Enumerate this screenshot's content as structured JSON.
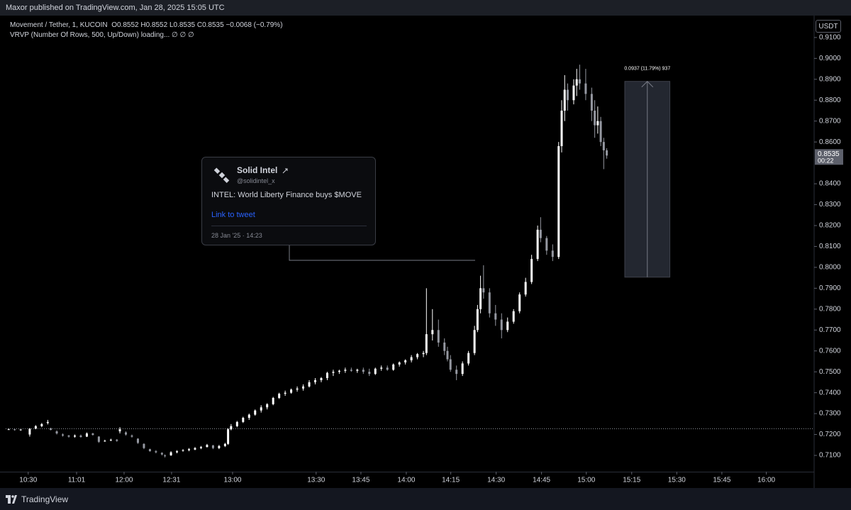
{
  "header": {
    "publisher": "Maxor published on TradingView.com, Jan 28, 2025 15:05 UTC",
    "symbol": "Movement / Tether, 1, KUCOIN",
    "ohlc": "O0.8552 H0.8552 L0.8535 C0.8535 −0.0068 (−0.79%)",
    "indicator": "VRVP (Number Of Rows, 500, Up/Down) loading... ∅ ∅ ∅",
    "currency": "USDT"
  },
  "tweet": {
    "name": "Solid Intel",
    "handle": "@solidintel_x",
    "text": "INTEL: World Liberty Finance buys $MOVE",
    "link": "Link to tweet",
    "date": "28 Jan '25 · 14:23"
  },
  "footer": {
    "brand": "TradingView"
  },
  "chart_data": {
    "type": "candlestick",
    "up_color": "#ffffff",
    "down_color": "#9598a1",
    "grid": false,
    "xlim": [
      0,
      269
    ],
    "ylim": [
      0.7022,
      0.9198
    ],
    "xticks": [
      {
        "value": 7.5,
        "label": "10:30"
      },
      {
        "value": 23.6,
        "label": "11:01"
      },
      {
        "value": 39.4,
        "label": "12:00"
      },
      {
        "value": 55.2,
        "label": "12:31"
      },
      {
        "value": 75.5,
        "label": "13:00"
      },
      {
        "value": 103.3,
        "label": "13:30"
      },
      {
        "value": 118.2,
        "label": "13:45"
      },
      {
        "value": 133.3,
        "label": "14:00"
      },
      {
        "value": 148.1,
        "label": "14:15"
      },
      {
        "value": 163.2,
        "label": "14:30"
      },
      {
        "value": 178.3,
        "label": "14:45"
      },
      {
        "value": 193.2,
        "label": "15:00"
      },
      {
        "value": 208.3,
        "label": "15:15"
      },
      {
        "value": 223.3,
        "label": "15:30"
      },
      {
        "value": 238.3,
        "label": "15:45"
      },
      {
        "value": 253.1,
        "label": "16:00"
      }
    ],
    "yticks": [
      {
        "value": 0.71,
        "label": "0.7100"
      },
      {
        "value": 0.72,
        "label": "0.7200"
      },
      {
        "value": 0.73,
        "label": "0.7300"
      },
      {
        "value": 0.74,
        "label": "0.7400"
      },
      {
        "value": 0.75,
        "label": "0.7500"
      },
      {
        "value": 0.76,
        "label": "0.7600"
      },
      {
        "value": 0.77,
        "label": "0.7700"
      },
      {
        "value": 0.78,
        "label": "0.7800"
      },
      {
        "value": 0.79,
        "label": "0.7900"
      },
      {
        "value": 0.8,
        "label": "0.8000"
      },
      {
        "value": 0.81,
        "label": "0.8100"
      },
      {
        "value": 0.82,
        "label": "0.8200"
      },
      {
        "value": 0.83,
        "label": "0.8300"
      },
      {
        "value": 0.84,
        "label": "0.8400"
      },
      {
        "value": 0.86,
        "label": "0.8600"
      },
      {
        "value": 0.87,
        "label": "0.8700"
      },
      {
        "value": 0.88,
        "label": "0.8800"
      },
      {
        "value": 0.89,
        "label": "0.8900"
      },
      {
        "value": 0.9,
        "label": "0.9000"
      },
      {
        "value": 0.91,
        "label": "0.9100"
      }
    ],
    "last_price": 0.8535,
    "countdown": "00:22",
    "reference_line": 0.7228,
    "measure": {
      "label": "0.0937 (11.79%) 937",
      "from": 0.7953,
      "to": 0.889,
      "x": [
        206,
        221
      ]
    },
    "candles": [
      {
        "x": 1,
        "open": 0.7225,
        "high": 0.7228,
        "low": 0.7222,
        "close": 0.7225
      },
      {
        "x": 3,
        "open": 0.7225,
        "high": 0.7226,
        "low": 0.7218,
        "close": 0.7222
      },
      {
        "x": 5,
        "open": 0.7222,
        "high": 0.7225,
        "low": 0.7218,
        "close": 0.7224
      },
      {
        "x": 8,
        "open": 0.72,
        "high": 0.723,
        "low": 0.719,
        "close": 0.7228
      },
      {
        "x": 10,
        "open": 0.7228,
        "high": 0.7245,
        "low": 0.7225,
        "close": 0.724
      },
      {
        "x": 12,
        "open": 0.724,
        "high": 0.7255,
        "low": 0.7235,
        "close": 0.725
      },
      {
        "x": 14,
        "open": 0.7255,
        "high": 0.727,
        "low": 0.7248,
        "close": 0.726
      },
      {
        "x": 15,
        "open": 0.723,
        "high": 0.7232,
        "low": 0.722,
        "close": 0.7222
      },
      {
        "x": 17,
        "open": 0.7215,
        "high": 0.722,
        "low": 0.72,
        "close": 0.7205
      },
      {
        "x": 19,
        "open": 0.72,
        "high": 0.7205,
        "low": 0.719,
        "close": 0.7195
      },
      {
        "x": 21,
        "open": 0.7195,
        "high": 0.7198,
        "low": 0.7185,
        "close": 0.719
      },
      {
        "x": 23,
        "open": 0.719,
        "high": 0.72,
        "low": 0.7185,
        "close": 0.7195
      },
      {
        "x": 25,
        "open": 0.7195,
        "high": 0.72,
        "low": 0.7185,
        "close": 0.7188
      },
      {
        "x": 27,
        "open": 0.719,
        "high": 0.721,
        "low": 0.7188,
        "close": 0.7205
      },
      {
        "x": 29,
        "open": 0.7205,
        "high": 0.7208,
        "low": 0.7195,
        "close": 0.7198
      },
      {
        "x": 31,
        "open": 0.719,
        "high": 0.7192,
        "low": 0.716,
        "close": 0.7165
      },
      {
        "x": 33,
        "open": 0.717,
        "high": 0.7175,
        "low": 0.7165,
        "close": 0.717
      },
      {
        "x": 35,
        "open": 0.7172,
        "high": 0.718,
        "low": 0.7168,
        "close": 0.7175
      },
      {
        "x": 37,
        "open": 0.7175,
        "high": 0.7178,
        "low": 0.7165,
        "close": 0.717
      },
      {
        "x": 38,
        "open": 0.7215,
        "high": 0.7235,
        "low": 0.7205,
        "close": 0.7225
      },
      {
        "x": 40,
        "open": 0.721,
        "high": 0.7215,
        "low": 0.7195,
        "close": 0.72
      },
      {
        "x": 42,
        "open": 0.7195,
        "high": 0.72,
        "low": 0.7185,
        "close": 0.719
      },
      {
        "x": 44,
        "open": 0.718,
        "high": 0.7182,
        "low": 0.7155,
        "close": 0.716
      },
      {
        "x": 46,
        "open": 0.7155,
        "high": 0.7158,
        "low": 0.713,
        "close": 0.7135
      },
      {
        "x": 48,
        "open": 0.713,
        "high": 0.7132,
        "low": 0.7118,
        "close": 0.712
      },
      {
        "x": 50,
        "open": 0.712,
        "high": 0.7125,
        "low": 0.711,
        "close": 0.7115
      },
      {
        "x": 52,
        "open": 0.7112,
        "high": 0.7115,
        "low": 0.71,
        "close": 0.7105
      },
      {
        "x": 53,
        "open": 0.71,
        "high": 0.7105,
        "low": 0.709,
        "close": 0.7098
      },
      {
        "x": 55,
        "open": 0.71,
        "high": 0.712,
        "low": 0.7098,
        "close": 0.7115
      },
      {
        "x": 57,
        "open": 0.7115,
        "high": 0.7125,
        "low": 0.711,
        "close": 0.712
      },
      {
        "x": 59,
        "open": 0.7122,
        "high": 0.713,
        "low": 0.7118,
        "close": 0.7125
      },
      {
        "x": 61,
        "open": 0.7125,
        "high": 0.7135,
        "low": 0.712,
        "close": 0.713
      },
      {
        "x": 63,
        "open": 0.7128,
        "high": 0.714,
        "low": 0.7125,
        "close": 0.7135
      },
      {
        "x": 65,
        "open": 0.7135,
        "high": 0.7145,
        "low": 0.713,
        "close": 0.714
      },
      {
        "x": 67,
        "open": 0.714,
        "high": 0.7155,
        "low": 0.7138,
        "close": 0.715
      },
      {
        "x": 69,
        "open": 0.7148,
        "high": 0.715,
        "low": 0.713,
        "close": 0.7135
      },
      {
        "x": 71,
        "open": 0.7135,
        "high": 0.715,
        "low": 0.713,
        "close": 0.7145
      },
      {
        "x": 73,
        "open": 0.7145,
        "high": 0.716,
        "low": 0.714,
        "close": 0.7155
      },
      {
        "x": 74,
        "open": 0.7155,
        "high": 0.723,
        "low": 0.715,
        "close": 0.7225
      },
      {
        "x": 75,
        "open": 0.7225,
        "high": 0.725,
        "low": 0.722,
        "close": 0.724
      },
      {
        "x": 77,
        "open": 0.724,
        "high": 0.7265,
        "low": 0.7235,
        "close": 0.726
      },
      {
        "x": 79,
        "open": 0.726,
        "high": 0.7285,
        "low": 0.7255,
        "close": 0.728
      },
      {
        "x": 81,
        "open": 0.728,
        "high": 0.73,
        "low": 0.727,
        "close": 0.7295
      },
      {
        "x": 83,
        "open": 0.7295,
        "high": 0.732,
        "low": 0.729,
        "close": 0.7315
      },
      {
        "x": 85,
        "open": 0.7315,
        "high": 0.734,
        "low": 0.7305,
        "close": 0.733
      },
      {
        "x": 87,
        "open": 0.733,
        "high": 0.735,
        "low": 0.732,
        "close": 0.7345
      },
      {
        "x": 89,
        "open": 0.7345,
        "high": 0.738,
        "low": 0.734,
        "close": 0.7375
      },
      {
        "x": 91,
        "open": 0.7375,
        "high": 0.74,
        "low": 0.737,
        "close": 0.7395
      },
      {
        "x": 93,
        "open": 0.7395,
        "high": 0.741,
        "low": 0.7385,
        "close": 0.74
      },
      {
        "x": 95,
        "open": 0.74,
        "high": 0.742,
        "low": 0.7395,
        "close": 0.7415
      },
      {
        "x": 97,
        "open": 0.7415,
        "high": 0.743,
        "low": 0.7405,
        "close": 0.742
      },
      {
        "x": 99,
        "open": 0.742,
        "high": 0.744,
        "low": 0.741,
        "close": 0.743
      },
      {
        "x": 101,
        "open": 0.743,
        "high": 0.746,
        "low": 0.7425,
        "close": 0.745
      },
      {
        "x": 103,
        "open": 0.745,
        "high": 0.747,
        "low": 0.744,
        "close": 0.746
      },
      {
        "x": 105,
        "open": 0.746,
        "high": 0.7475,
        "low": 0.745,
        "close": 0.747
      },
      {
        "x": 107,
        "open": 0.747,
        "high": 0.75,
        "low": 0.746,
        "close": 0.7495
      },
      {
        "x": 109,
        "open": 0.7495,
        "high": 0.751,
        "low": 0.748,
        "close": 0.75
      },
      {
        "x": 111,
        "open": 0.75,
        "high": 0.751,
        "low": 0.749,
        "close": 0.7505
      },
      {
        "x": 113,
        "open": 0.7505,
        "high": 0.752,
        "low": 0.7495,
        "close": 0.751
      },
      {
        "x": 115,
        "open": 0.751,
        "high": 0.752,
        "low": 0.75,
        "close": 0.7505
      },
      {
        "x": 117,
        "open": 0.7505,
        "high": 0.7515,
        "low": 0.7495,
        "close": 0.751
      },
      {
        "x": 119,
        "open": 0.751,
        "high": 0.752,
        "low": 0.749,
        "close": 0.75
      },
      {
        "x": 121,
        "open": 0.75,
        "high": 0.7515,
        "low": 0.748,
        "close": 0.749
      },
      {
        "x": 123,
        "open": 0.749,
        "high": 0.752,
        "low": 0.7485,
        "close": 0.7515
      },
      {
        "x": 125,
        "open": 0.7515,
        "high": 0.753,
        "low": 0.7505,
        "close": 0.752
      },
      {
        "x": 127,
        "open": 0.752,
        "high": 0.753,
        "low": 0.7505,
        "close": 0.751
      },
      {
        "x": 129,
        "open": 0.751,
        "high": 0.754,
        "low": 0.7505,
        "close": 0.7535
      },
      {
        "x": 131,
        "open": 0.7535,
        "high": 0.755,
        "low": 0.7525,
        "close": 0.7545
      },
      {
        "x": 133,
        "open": 0.7545,
        "high": 0.756,
        "low": 0.7535,
        "close": 0.7555
      },
      {
        "x": 135,
        "open": 0.7555,
        "high": 0.758,
        "low": 0.7545,
        "close": 0.757
      },
      {
        "x": 137,
        "open": 0.757,
        "high": 0.759,
        "low": 0.756,
        "close": 0.7585
      },
      {
        "x": 139,
        "open": 0.7585,
        "high": 0.76,
        "low": 0.757,
        "close": 0.759
      },
      {
        "x": 140,
        "open": 0.759,
        "high": 0.79,
        "low": 0.758,
        "close": 0.768
      },
      {
        "x": 142,
        "open": 0.768,
        "high": 0.78,
        "low": 0.765,
        "close": 0.77
      },
      {
        "x": 144,
        "open": 0.77,
        "high": 0.775,
        "low": 0.762,
        "close": 0.764
      },
      {
        "x": 146,
        "open": 0.764,
        "high": 0.766,
        "low": 0.758,
        "close": 0.76
      },
      {
        "x": 147,
        "open": 0.76,
        "high": 0.762,
        "low": 0.755,
        "close": 0.756
      },
      {
        "x": 148,
        "open": 0.756,
        "high": 0.758,
        "low": 0.75,
        "close": 0.751
      },
      {
        "x": 150,
        "open": 0.751,
        "high": 0.753,
        "low": 0.746,
        "close": 0.749
      },
      {
        "x": 152,
        "open": 0.749,
        "high": 0.755,
        "low": 0.748,
        "close": 0.754
      },
      {
        "x": 154,
        "open": 0.754,
        "high": 0.76,
        "low": 0.753,
        "close": 0.759
      },
      {
        "x": 156,
        "open": 0.759,
        "high": 0.772,
        "low": 0.758,
        "close": 0.77
      },
      {
        "x": 157,
        "open": 0.77,
        "high": 0.782,
        "low": 0.769,
        "close": 0.78
      },
      {
        "x": 158,
        "open": 0.78,
        "high": 0.796,
        "low": 0.778,
        "close": 0.79
      },
      {
        "x": 159,
        "open": 0.79,
        "high": 0.801,
        "low": 0.785,
        "close": 0.788
      },
      {
        "x": 161,
        "open": 0.788,
        "high": 0.79,
        "low": 0.776,
        "close": 0.778
      },
      {
        "x": 163,
        "open": 0.778,
        "high": 0.782,
        "low": 0.772,
        "close": 0.775
      },
      {
        "x": 165,
        "open": 0.775,
        "high": 0.778,
        "low": 0.766,
        "close": 0.77
      },
      {
        "x": 167,
        "open": 0.77,
        "high": 0.776,
        "low": 0.769,
        "close": 0.774
      },
      {
        "x": 169,
        "open": 0.774,
        "high": 0.78,
        "low": 0.773,
        "close": 0.779
      },
      {
        "x": 171,
        "open": 0.779,
        "high": 0.788,
        "low": 0.778,
        "close": 0.787
      },
      {
        "x": 173,
        "open": 0.787,
        "high": 0.795,
        "low": 0.786,
        "close": 0.793
      },
      {
        "x": 175,
        "open": 0.793,
        "high": 0.806,
        "low": 0.792,
        "close": 0.804
      },
      {
        "x": 177,
        "open": 0.804,
        "high": 0.82,
        "low": 0.803,
        "close": 0.818
      },
      {
        "x": 178,
        "open": 0.818,
        "high": 0.824,
        "low": 0.812,
        "close": 0.814
      },
      {
        "x": 180,
        "open": 0.814,
        "high": 0.815,
        "low": 0.806,
        "close": 0.808
      },
      {
        "x": 182,
        "open": 0.808,
        "high": 0.811,
        "low": 0.803,
        "close": 0.805
      },
      {
        "x": 184,
        "open": 0.805,
        "high": 0.86,
        "low": 0.804,
        "close": 0.858
      },
      {
        "x": 185,
        "open": 0.858,
        "high": 0.88,
        "low": 0.855,
        "close": 0.875
      },
      {
        "x": 186,
        "open": 0.875,
        "high": 0.892,
        "low": 0.87,
        "close": 0.885
      },
      {
        "x": 187,
        "open": 0.885,
        "high": 0.888,
        "low": 0.875,
        "close": 0.88
      },
      {
        "x": 189,
        "open": 0.88,
        "high": 0.89,
        "low": 0.878,
        "close": 0.887
      },
      {
        "x": 190,
        "open": 0.887,
        "high": 0.895,
        "low": 0.882,
        "close": 0.89
      },
      {
        "x": 191,
        "open": 0.89,
        "high": 0.897,
        "low": 0.885,
        "close": 0.888
      },
      {
        "x": 193,
        "open": 0.888,
        "high": 0.895,
        "low": 0.88,
        "close": 0.883
      },
      {
        "x": 195,
        "open": 0.883,
        "high": 0.886,
        "low": 0.87,
        "close": 0.875
      },
      {
        "x": 196,
        "open": 0.875,
        "high": 0.88,
        "low": 0.862,
        "close": 0.868
      },
      {
        "x": 197,
        "open": 0.868,
        "high": 0.877,
        "low": 0.864,
        "close": 0.87
      },
      {
        "x": 198,
        "open": 0.87,
        "high": 0.872,
        "low": 0.858,
        "close": 0.86
      },
      {
        "x": 199,
        "open": 0.86,
        "high": 0.862,
        "low": 0.847,
        "close": 0.856
      },
      {
        "x": 200,
        "open": 0.856,
        "high": 0.857,
        "low": 0.852,
        "close": 0.8535
      }
    ]
  }
}
